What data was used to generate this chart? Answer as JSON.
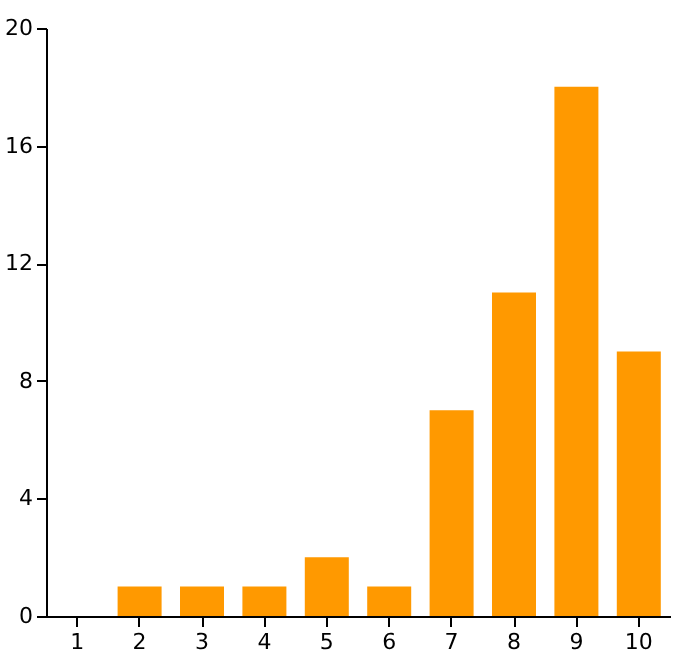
{
  "chart_data": {
    "type": "bar",
    "categories": [
      "1",
      "2",
      "3",
      "4",
      "5",
      "6",
      "7",
      "8",
      "9",
      "10"
    ],
    "values": [
      0,
      1,
      1,
      1,
      2,
      1,
      7,
      11,
      18,
      9
    ],
    "color": "#ff9900",
    "ylim": [
      0,
      20
    ],
    "yticks": [
      0,
      4,
      8,
      12,
      16,
      20
    ],
    "grid": false
  }
}
